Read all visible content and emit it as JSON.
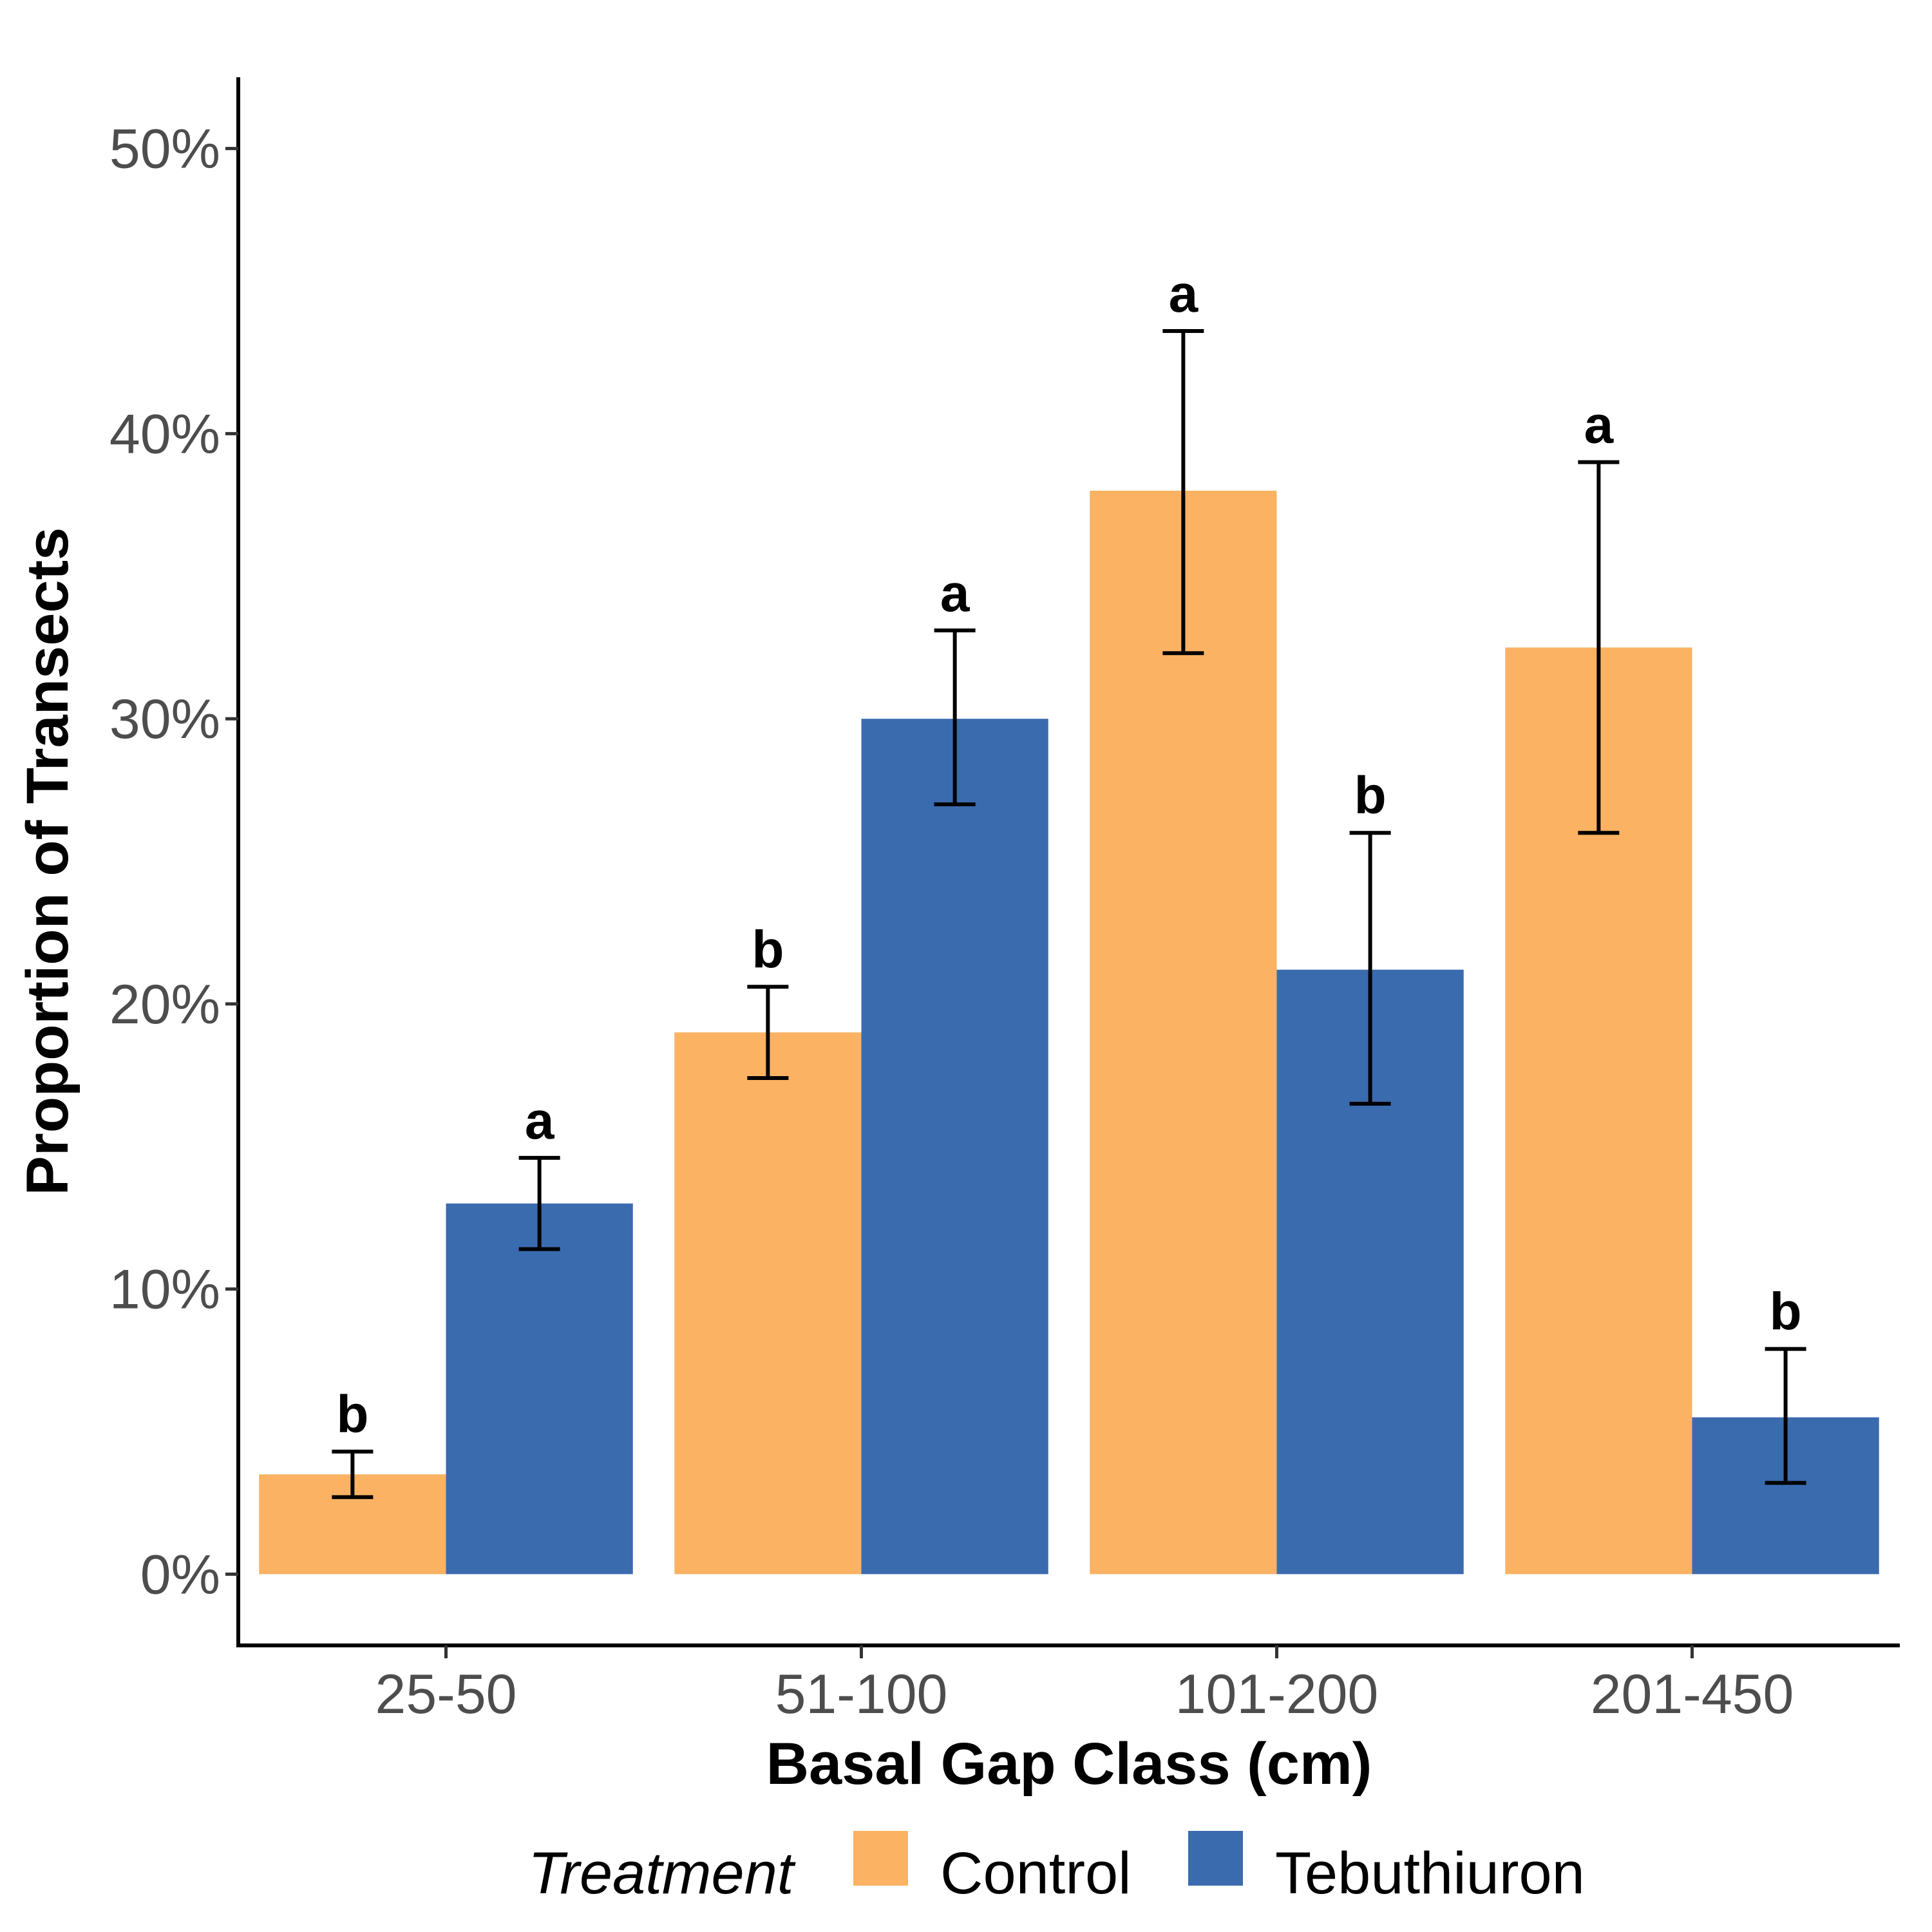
{
  "chart_data": {
    "type": "bar",
    "title": "",
    "xlabel": "Basal Gap Class (cm)",
    "ylabel": "Proportion of Transects",
    "ylim": [
      -0.025,
      0.525
    ],
    "yticks": [
      0,
      0.1,
      0.2,
      0.3,
      0.4,
      0.5
    ],
    "ytick_labels": [
      "0%",
      "10%",
      "20%",
      "30%",
      "40%",
      "50%"
    ],
    "categories": [
      "25-50",
      "51-100",
      "101-200",
      "201-450"
    ],
    "grid": false,
    "legend": {
      "title": "Treatment",
      "position": "bottom"
    },
    "series": [
      {
        "name": "Control",
        "color": "#fbb263",
        "values": [
          0.035,
          0.19,
          0.38,
          0.325
        ],
        "err_low": [
          0.027,
          0.174,
          0.323,
          0.26
        ],
        "err_high": [
          0.043,
          0.206,
          0.436,
          0.39
        ],
        "labels": [
          "b",
          "b",
          "a",
          "a"
        ]
      },
      {
        "name": "Tebuthiuron",
        "color": "#3a6baf",
        "values": [
          0.13,
          0.3,
          0.212,
          0.055
        ],
        "err_low": [
          0.114,
          0.27,
          0.165,
          0.032
        ],
        "err_high": [
          0.146,
          0.331,
          0.26,
          0.079
        ],
        "labels": [
          "a",
          "a",
          "b",
          "b"
        ]
      }
    ]
  }
}
